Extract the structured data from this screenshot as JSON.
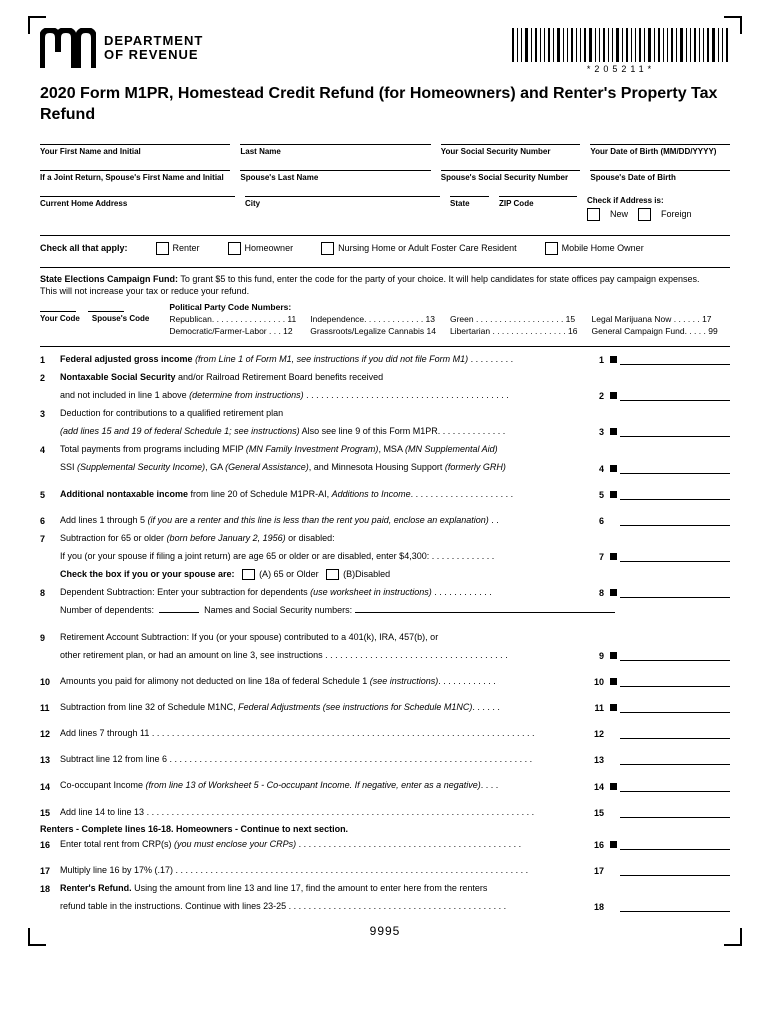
{
  "header": {
    "dept_line1": "DEPARTMENT",
    "dept_line2": "OF REVENUE",
    "logo_glyph": "m",
    "barcode_text": "*205211*"
  },
  "title": "2020 Form M1PR, Homestead Credit Refund (for Homeowners) and Renter's Property Tax Refund",
  "fields": {
    "first_name": "Your First Name and Initial",
    "last_name": "Last Name",
    "ssn": "Your Social Security Number",
    "dob": "Your Date of Birth (MM/DD/YYYY)",
    "sp_first": "If a Joint Return, Spouse's First Name and Initial",
    "sp_last": "Spouse's Last Name",
    "sp_ssn": "Spouse's Social Security Number",
    "sp_dob": "Spouse's Date of Birth",
    "address": "Current Home Address",
    "city": "City",
    "state": "State",
    "zip": "ZIP Code",
    "addr_check_lbl": "Check if Address is:",
    "addr_new": "New",
    "addr_foreign": "Foreign"
  },
  "check_apply": {
    "label": "Check all that apply:",
    "renter": "Renter",
    "homeowner": "Homeowner",
    "nursing": "Nursing Home or Adult Foster Care Resident",
    "mobile": "Mobile Home Owner"
  },
  "campaign": {
    "bold": "State Elections Campaign Fund:",
    "text": " To grant $5 to this fund, enter the code for the party of your choice. It will help candidates for state offices pay campaign expenses.",
    "text2": "This will not increase your tax or reduce your refund.",
    "your_code": "Your Code",
    "spouse_code": "Spouse's Code",
    "party_title": "Political Party Code Numbers:",
    "parties": [
      {
        "name": "Republican",
        "dots": ". . . . . . . . . . . . . . . .",
        "code": "11"
      },
      {
        "name": "Independence",
        "dots": ". . . . . . . . . . . . .",
        "code": "13"
      },
      {
        "name": "Green",
        "dots": " . . . . . . . . . . . . . . . . . . .",
        "code": "15"
      },
      {
        "name": "Legal Marijuana Now",
        "dots": " . . . . . .",
        "code": "17"
      },
      {
        "name": "Democratic/Farmer-Labor",
        "dots": " . . .",
        "code": "12"
      },
      {
        "name": "Grassroots/Legalize Cannabis",
        "dots": "",
        "code": "14"
      },
      {
        "name": "Libertarian",
        "dots": " . . . . . . . . . . . . . . . .",
        "code": "16"
      },
      {
        "name": "General Campaign Fund",
        "dots": ". . . . .",
        "code": "99"
      }
    ]
  },
  "lines": [
    {
      "n": "1",
      "t": "<b>Federal adjusted gross income</b> <em>(from Line 1 of Form M1, see instructions if you did not file Form M1)</em> . . . . . . . . .",
      "r": "1",
      "sq": true
    },
    {
      "n": "2",
      "t": "<b>Nontaxable Social Security</b> and/or Railroad Retirement Board benefits received",
      "r": "",
      "sq": false,
      "noamt": true
    },
    {
      "n": "",
      "t": "and not included in line 1 above <em>(determine from instructions)</em> . . . . . . . . . . . . . . . . . . . . . . . . . . . . . . . . . . . . . . . . .",
      "r": "2",
      "sq": true,
      "indent": true
    },
    {
      "n": "3",
      "t": "Deduction for contributions to a qualified retirement plan",
      "r": "",
      "sq": false,
      "noamt": true
    },
    {
      "n": "",
      "t": "<em>(add lines 15 and 19 of federal Schedule 1; see instructions)</em> Also see line 9 of this Form M1PR. . . . . . . . . . . . . .",
      "r": "3",
      "sq": true,
      "indent": true
    },
    {
      "n": "4",
      "t": "Total payments from programs including MFIP <em>(MN Family Investment Program)</em>, MSA <em>(MN Supplemental Aid)</em>",
      "r": "",
      "sq": false,
      "noamt": true
    },
    {
      "n": "",
      "t": "SSI <em>(Supplemental Security Income)</em>, GA <em>(General Assistance)</em>, and Minnesota Housing Support <em>(formerly GRH)</em>",
      "r": "4",
      "sq": true,
      "indent": true
    },
    {
      "n": "5",
      "t": "<b>Additional nontaxable income</b> from line 20 of Schedule M1PR-AI, <em>Additions to Income</em>. . . . . . . . . . . . . . . . . . . . .",
      "r": "5",
      "sq": true,
      "gap": true
    },
    {
      "n": "6",
      "t": "Add lines 1 through 5 <em>(if you are a renter and this line is less than the rent you paid, enclose an explanation)</em> . .",
      "r": "6",
      "sq": false,
      "gap": true
    },
    {
      "n": "7",
      "t": "Subtraction for 65 or older <em>(born before January 2, 1956)</em> or disabled:",
      "r": "",
      "sq": false,
      "noamt": true
    },
    {
      "n": "",
      "t": "If you (or your spouse if filing a joint return) are age 65 or older or are disabled, enter $4,300: . . . . . . . . . . . . .",
      "r": "7",
      "sq": true,
      "indent": true
    },
    {
      "n": "",
      "t": "<b>Check the box if you or your spouse are:</b> &nbsp;<span class='inline-box'></span> (A) 65 or Older &nbsp;<span class='inline-box'></span> (B)Disabled",
      "r": "",
      "sq": false,
      "noamt": true,
      "indent": true
    },
    {
      "n": "8",
      "t": "Dependent Subtraction:  Enter your subtraction for dependents <em>(use worksheet in instructions)</em> . . . . . . . . . . . .",
      "r": "8",
      "sq": true
    },
    {
      "n": "",
      "t": "Number of dependents: &nbsp;<span class='short-uline'></span>&nbsp; Names and Social Security numbers: <span class='long-uline'></span>",
      "r": "",
      "sq": false,
      "noamt": true,
      "indent": true
    },
    {
      "n": "9",
      "t": "Retirement Account Subtraction: If you (or your spouse) contributed to a 401(k), IRA, 457(b), or",
      "r": "",
      "sq": false,
      "noamt": true,
      "gap": true
    },
    {
      "n": "",
      "t": "other retirement plan, or had an amount on line 3, see instructions  . . . . . . . . . . . . . . . . . . . . . . . . . . . . . . . . . . . . .",
      "r": "9",
      "sq": true,
      "indent": true
    },
    {
      "n": "10",
      "t": "Amounts you paid for alimony not deducted on line 18a of federal Schedule 1 <em>(see instructions)</em>. . . . . . . . . . . .",
      "r": "10",
      "sq": true,
      "gap": true
    },
    {
      "n": "11",
      "t": "Subtraction from line 32 of Schedule M1NC, <em>Federal Adjustments (see instructions for Schedule M1NC)</em>. . . . . .",
      "r": "11",
      "sq": true,
      "gap": true
    },
    {
      "n": "12",
      "t": "Add lines 7 through 11 . . . . . . . . . . . . . . . . . . . . . . . . . . . . . . . . . . . . . . . . . . . . . . . . . . . . . . . . . . . . . . . . . . . . . . . . . . . . .",
      "r": "12",
      "sq": false,
      "gap": true
    },
    {
      "n": "13",
      "t": "Subtract line 12 from line 6 . . . . . . . . . . . . . . . . . . . . . . . . . . . . . . . . . . . . . . . . . . . . . . . . . . . . . . . . . . . . . . . . . . . . . . . . .",
      "r": "13",
      "sq": false,
      "gap": true
    },
    {
      "n": "14",
      "t": "Co-occupant Income <em>(from line 13 of Worksheet 5 - Co-occupant Income. If negative, enter as a negative)</em>. . . .",
      "r": "14",
      "sq": true,
      "gap": true
    },
    {
      "n": "15",
      "t": "Add line 14 to line 13 . . . . . . . . . . . . . . . . . . . . . . . . . . . . . . . . . . . . . . . . . . . . . . . . . . . . . . . . . . . . . . . . . . . . . . . . . . . . . .",
      "r": "15",
      "sq": false,
      "gap": true
    }
  ],
  "section2_head": "Renters - Complete lines 16-18. Homeowners - Continue to next section.",
  "lines2": [
    {
      "n": "16",
      "t": "Enter total rent from CRP(s) <em>(you must enclose your CRPs)</em> . . . . . . . . . . . . . . . . . . . . . . . . . . . . . . . . . . . . . . . . . . . . .",
      "r": "16",
      "sq": true
    },
    {
      "n": "17",
      "t": "Multiply line 16 by 17% (.17) . . . . . . . . . . . . . . . . . . . . . . . . . . . . . . . . . . . . . . . . . . . . . . . . . . . . . . . . . . . . . . . . . . . . . . .",
      "r": "17",
      "sq": false,
      "gap": true
    },
    {
      "n": "18",
      "t": "<b>Renter's Refund.</b> Using the amount from line 13 and line 17, find the amount to enter here from the renters",
      "r": "",
      "sq": false,
      "noamt": true
    },
    {
      "n": "",
      "t": "refund table in the instructions. Continue with lines 23-25  . . . . . . . . . . . . . . . . . . . . . . . . . . . . . . . . . . . . . . . . . . . .",
      "r": "18",
      "sq": false,
      "indent": true
    }
  ],
  "footer": "9995"
}
